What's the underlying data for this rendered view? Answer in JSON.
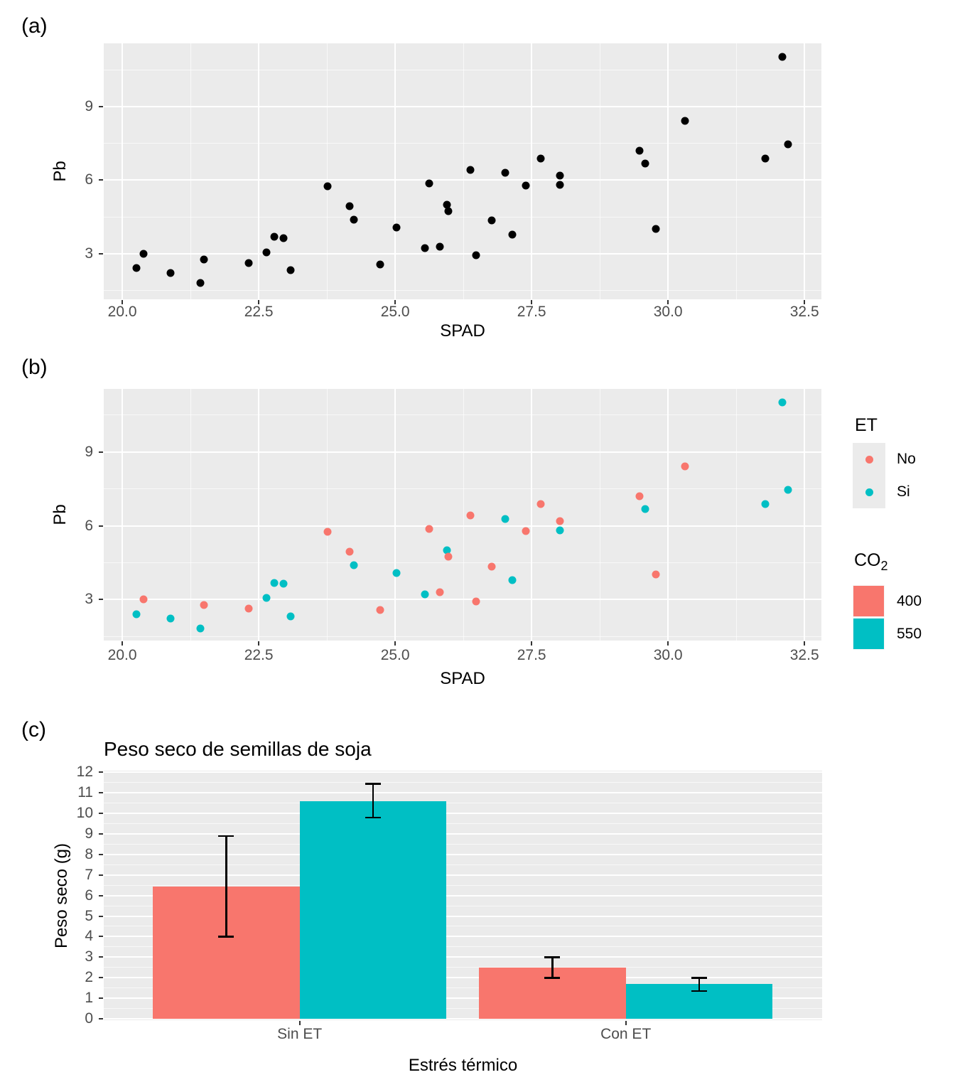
{
  "figure": {
    "panel_labels": {
      "a": "(a)",
      "b": "(b)",
      "c": "(c)"
    }
  },
  "colors": {
    "panel_background": "#EBEBEB",
    "grid": "#FFFFFF",
    "tick_text": "#4D4D4D",
    "point_black": "#000000",
    "salmon_400_no": "#F8766D",
    "teal_550_si": "#00BFC4"
  },
  "chart_data": [
    {
      "panel": "a",
      "type": "scatter",
      "title": "",
      "xlabel": "SPAD",
      "ylabel": "Pb",
      "xlim": [
        19.66,
        32.81
      ],
      "ylim": [
        1.14,
        11.58
      ],
      "xticks": [
        20.0,
        22.5,
        25.0,
        27.5,
        30.0,
        32.5
      ],
      "xtick_labels": [
        "20.0",
        "22.5",
        "25.0",
        "27.5",
        "30.0",
        "32.5"
      ],
      "xticks_minor": [
        21.25,
        23.75,
        26.25,
        28.75,
        31.25
      ],
      "yticks": [
        3,
        6,
        9
      ],
      "ytick_labels": [
        "3",
        "6",
        "9"
      ],
      "yticks_minor": [
        1.5,
        4.5,
        7.5,
        10.5
      ],
      "grid": true,
      "legend_position": "none",
      "point_color": "#000000",
      "points": [
        [
          20.26,
          2.41
        ],
        [
          20.39,
          3.0
        ],
        [
          20.89,
          2.22
        ],
        [
          21.43,
          1.82
        ],
        [
          21.49,
          2.77
        ],
        [
          22.31,
          2.63
        ],
        [
          22.64,
          3.06
        ],
        [
          22.78,
          3.68
        ],
        [
          22.95,
          3.63
        ],
        [
          23.08,
          2.32
        ],
        [
          23.76,
          5.75
        ],
        [
          24.16,
          4.95
        ],
        [
          24.24,
          4.4
        ],
        [
          24.73,
          2.56
        ],
        [
          25.03,
          4.07
        ],
        [
          25.54,
          3.22
        ],
        [
          25.62,
          5.88
        ],
        [
          25.82,
          3.3
        ],
        [
          25.95,
          4.99
        ],
        [
          25.97,
          4.73
        ],
        [
          26.38,
          6.41
        ],
        [
          26.48,
          2.93
        ],
        [
          26.77,
          4.35
        ],
        [
          27.02,
          6.29
        ],
        [
          27.14,
          3.79
        ],
        [
          27.4,
          5.79
        ],
        [
          27.67,
          6.88
        ],
        [
          28.02,
          6.2
        ],
        [
          28.02,
          5.81
        ],
        [
          29.48,
          7.21
        ],
        [
          29.58,
          6.67
        ],
        [
          29.78,
          4.01
        ],
        [
          30.31,
          8.43
        ],
        [
          31.78,
          6.88
        ],
        [
          32.1,
          11.03
        ],
        [
          32.2,
          7.47
        ]
      ]
    },
    {
      "panel": "b",
      "type": "scatter",
      "title": "",
      "xlabel": "SPAD",
      "ylabel": "Pb",
      "xlim": [
        19.66,
        32.81
      ],
      "ylim": [
        1.33,
        11.57
      ],
      "xticks": [
        20.0,
        22.5,
        25.0,
        27.5,
        30.0,
        32.5
      ],
      "xtick_labels": [
        "20.0",
        "22.5",
        "25.0",
        "27.5",
        "30.0",
        "32.5"
      ],
      "xticks_minor": [
        21.25,
        23.75,
        26.25,
        28.75,
        31.25
      ],
      "yticks": [
        3,
        6,
        9
      ],
      "ytick_labels": [
        "3",
        "6",
        "9"
      ],
      "yticks_minor": [
        1.5,
        4.5,
        7.5,
        10.5
      ],
      "grid": true,
      "legend_position": "right",
      "series_field": "ET",
      "groups": [
        {
          "name": "No",
          "color": "#F8766D"
        },
        {
          "name": "Si",
          "color": "#00BFC4"
        }
      ],
      "points": [
        [
          20.26,
          2.41,
          "Si"
        ],
        [
          20.39,
          3.0,
          "No"
        ],
        [
          20.89,
          2.22,
          "Si"
        ],
        [
          21.43,
          1.82,
          "Si"
        ],
        [
          21.49,
          2.77,
          "No"
        ],
        [
          22.31,
          2.63,
          "No"
        ],
        [
          22.64,
          3.06,
          "Si"
        ],
        [
          22.78,
          3.68,
          "Si"
        ],
        [
          22.95,
          3.63,
          "Si"
        ],
        [
          23.08,
          2.32,
          "Si"
        ],
        [
          23.76,
          5.75,
          "No"
        ],
        [
          24.16,
          4.95,
          "No"
        ],
        [
          24.24,
          4.4,
          "Si"
        ],
        [
          24.73,
          2.56,
          "No"
        ],
        [
          25.03,
          4.07,
          "Si"
        ],
        [
          25.54,
          3.22,
          "Si"
        ],
        [
          25.62,
          5.88,
          "No"
        ],
        [
          25.82,
          3.3,
          "No"
        ],
        [
          25.95,
          4.99,
          "Si"
        ],
        [
          25.97,
          4.73,
          "No"
        ],
        [
          26.38,
          6.41,
          "No"
        ],
        [
          26.48,
          2.93,
          "No"
        ],
        [
          26.77,
          4.35,
          "No"
        ],
        [
          27.02,
          6.29,
          "Si"
        ],
        [
          27.14,
          3.79,
          "Si"
        ],
        [
          27.4,
          5.79,
          "No"
        ],
        [
          27.67,
          6.88,
          "No"
        ],
        [
          28.02,
          6.2,
          "No"
        ],
        [
          28.02,
          5.81,
          "Si"
        ],
        [
          29.48,
          7.21,
          "No"
        ],
        [
          29.58,
          6.67,
          "Si"
        ],
        [
          29.78,
          4.01,
          "No"
        ],
        [
          30.31,
          8.43,
          "No"
        ],
        [
          31.78,
          6.88,
          "Si"
        ],
        [
          32.1,
          11.03,
          "Si"
        ],
        [
          32.2,
          7.47,
          "Si"
        ]
      ],
      "legend": {
        "et": {
          "title": "ET",
          "items": [
            {
              "label": "No",
              "color": "#F8766D"
            },
            {
              "label": "Si",
              "color": "#00BFC4"
            }
          ]
        },
        "co2": {
          "title_main": "CO",
          "title_sub": "2",
          "items": [
            {
              "label": "400",
              "color": "#F8766D"
            },
            {
              "label": "550",
              "color": "#00BFC4"
            }
          ]
        }
      }
    },
    {
      "panel": "c",
      "type": "bar",
      "title": "Peso seco de semillas de soja",
      "xlabel": "Estrés térmico",
      "ylabel": "Peso seco (g)",
      "categories": [
        "Sin ET",
        "Con ET"
      ],
      "series": [
        {
          "name": "400",
          "color": "#F8766D",
          "values": [
            6.45,
            2.5
          ],
          "error_bars": [
            [
              4.0,
              8.9
            ],
            [
              2.0,
              3.0
            ]
          ]
        },
        {
          "name": "550",
          "color": "#00BFC4",
          "values": [
            10.6,
            1.7
          ],
          "error_bars": [
            [
              9.8,
              11.45
            ],
            [
              1.35,
              2.0
            ]
          ]
        }
      ],
      "ylim": [
        0,
        12.1
      ],
      "yticks": [
        0,
        1,
        2,
        3,
        4,
        5,
        6,
        7,
        8,
        9,
        10,
        11,
        12
      ],
      "ytick_labels": [
        "0",
        "1",
        "2",
        "3",
        "4",
        "5",
        "6",
        "7",
        "8",
        "9",
        "10",
        "11",
        "12"
      ],
      "yticks_minor": [
        0.5,
        1.5,
        2.5,
        3.5,
        4.5,
        5.5,
        6.5,
        7.5,
        8.5,
        9.5,
        10.5,
        11.5
      ],
      "grid": true,
      "legend_position": "none"
    }
  ]
}
